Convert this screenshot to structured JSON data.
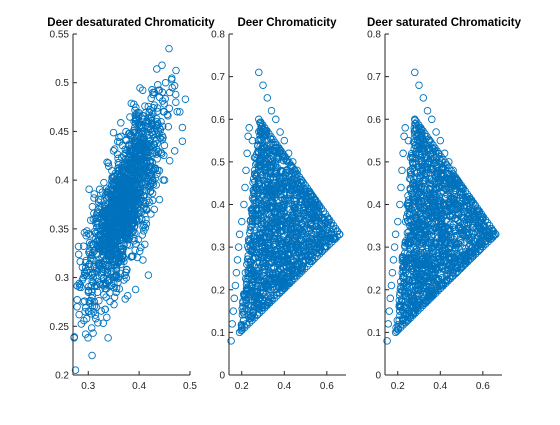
{
  "figure": {
    "marker_color": "#0072BD",
    "axis_color": "#262626",
    "background": "#ffffff"
  },
  "chart_data": [
    {
      "type": "scatter",
      "title": "Deer desaturated Chromaticity",
      "xlabel": "",
      "ylabel": "",
      "xlim": [
        0.27,
        0.5
      ],
      "ylim": [
        0.2,
        0.55
      ],
      "xticks": [
        0.3,
        0.4,
        0.5
      ],
      "yticks": [
        0.2,
        0.25,
        0.3,
        0.35,
        0.4,
        0.45,
        0.5,
        0.55
      ],
      "xtick_labels": [
        "0.3",
        "0.4",
        "0.5"
      ],
      "ytick_labels": [
        "0.2",
        "0.25",
        "0.3",
        "0.35",
        "0.4",
        "0.45",
        "0.5",
        "0.55"
      ],
      "marker": "circle",
      "grid": false,
      "points": [
        [
          0.275,
          0.205
        ],
        [
          0.278,
          0.27
        ],
        [
          0.282,
          0.262
        ],
        [
          0.286,
          0.29
        ],
        [
          0.29,
          0.275
        ],
        [
          0.295,
          0.31
        ],
        [
          0.3,
          0.285
        ],
        [
          0.305,
          0.32
        ],
        [
          0.31,
          0.3
        ],
        [
          0.315,
          0.34
        ],
        [
          0.32,
          0.315
        ],
        [
          0.325,
          0.35
        ],
        [
          0.33,
          0.33
        ],
        [
          0.335,
          0.365
        ],
        [
          0.34,
          0.345
        ],
        [
          0.345,
          0.38
        ],
        [
          0.35,
          0.36
        ],
        [
          0.355,
          0.39
        ],
        [
          0.36,
          0.37
        ],
        [
          0.365,
          0.405
        ],
        [
          0.37,
          0.385
        ],
        [
          0.375,
          0.415
        ],
        [
          0.38,
          0.395
        ],
        [
          0.385,
          0.43
        ],
        [
          0.39,
          0.405
        ],
        [
          0.395,
          0.44
        ],
        [
          0.4,
          0.415
        ],
        [
          0.405,
          0.45
        ],
        [
          0.41,
          0.425
        ],
        [
          0.415,
          0.46
        ],
        [
          0.42,
          0.44
        ],
        [
          0.425,
          0.465
        ],
        [
          0.43,
          0.45
        ],
        [
          0.44,
          0.485
        ],
        [
          0.445,
          0.518
        ],
        [
          0.452,
          0.5
        ],
        [
          0.46,
          0.49
        ],
        [
          0.465,
          0.495
        ],
        [
          0.472,
          0.48
        ],
        [
          0.48,
          0.47
        ],
        [
          0.485,
          0.44
        ],
        [
          0.47,
          0.43
        ],
        [
          0.46,
          0.42
        ],
        [
          0.45,
          0.4
        ],
        [
          0.44,
          0.38
        ],
        [
          0.3,
          0.345
        ],
        [
          0.31,
          0.36
        ],
        [
          0.32,
          0.37
        ],
        [
          0.29,
          0.3
        ],
        [
          0.335,
          0.28
        ],
        [
          0.35,
          0.3
        ],
        [
          0.37,
          0.32
        ],
        [
          0.39,
          0.34
        ],
        [
          0.405,
          0.36
        ],
        [
          0.33,
          0.3
        ],
        [
          0.36,
          0.41
        ],
        [
          0.38,
          0.43
        ],
        [
          0.4,
          0.455
        ],
        [
          0.42,
          0.47
        ],
        [
          0.43,
          0.49
        ]
      ],
      "density": {
        "center": [
          0.37,
          0.375
        ],
        "spread_major": 0.105,
        "spread_minor": 0.02,
        "angle_deg": 56
      }
    },
    {
      "type": "scatter",
      "title": "Deer Chromaticity",
      "xlabel": "",
      "ylabel": "",
      "xlim": [
        0.14,
        0.69
      ],
      "ylim": [
        0,
        0.8
      ],
      "xticks": [
        0.2,
        0.4,
        0.6
      ],
      "yticks": [
        0,
        0.1,
        0.2,
        0.3,
        0.4,
        0.5,
        0.6,
        0.7,
        0.8
      ],
      "xtick_labels": [
        "0.2",
        "0.4",
        "0.6"
      ],
      "ytick_labels": [
        "0",
        "0.1",
        "0.2",
        "0.3",
        "0.4",
        "0.5",
        "0.6",
        "0.7",
        "0.8"
      ],
      "marker": "circle",
      "grid": false,
      "points": [
        [
          0.15,
          0.08
        ],
        [
          0.155,
          0.12
        ],
        [
          0.16,
          0.15
        ],
        [
          0.165,
          0.18
        ],
        [
          0.17,
          0.21
        ],
        [
          0.175,
          0.24
        ],
        [
          0.18,
          0.27
        ],
        [
          0.185,
          0.3
        ],
        [
          0.19,
          0.33
        ],
        [
          0.2,
          0.36
        ],
        [
          0.21,
          0.4
        ],
        [
          0.215,
          0.44
        ],
        [
          0.22,
          0.48
        ],
        [
          0.225,
          0.52
        ],
        [
          0.23,
          0.56
        ],
        [
          0.235,
          0.58
        ],
        [
          0.25,
          0.55
        ],
        [
          0.26,
          0.51
        ],
        [
          0.28,
          0.71
        ],
        [
          0.3,
          0.68
        ],
        [
          0.32,
          0.65
        ],
        [
          0.34,
          0.62
        ],
        [
          0.36,
          0.6
        ],
        [
          0.38,
          0.57
        ],
        [
          0.4,
          0.55
        ],
        [
          0.42,
          0.52
        ],
        [
          0.44,
          0.5
        ],
        [
          0.46,
          0.48
        ],
        [
          0.48,
          0.45
        ],
        [
          0.5,
          0.43
        ],
        [
          0.52,
          0.41
        ],
        [
          0.54,
          0.39
        ],
        [
          0.56,
          0.37
        ],
        [
          0.58,
          0.35
        ],
        [
          0.6,
          0.34
        ],
        [
          0.62,
          0.33
        ],
        [
          0.64,
          0.32
        ],
        [
          0.66,
          0.33
        ],
        [
          0.2,
          0.11
        ],
        [
          0.22,
          0.12
        ],
        [
          0.24,
          0.14
        ],
        [
          0.26,
          0.16
        ],
        [
          0.28,
          0.18
        ],
        [
          0.3,
          0.19
        ],
        [
          0.32,
          0.21
        ],
        [
          0.34,
          0.22
        ],
        [
          0.36,
          0.24
        ],
        [
          0.38,
          0.25
        ],
        [
          0.4,
          0.27
        ],
        [
          0.42,
          0.28
        ],
        [
          0.44,
          0.27
        ],
        [
          0.46,
          0.26
        ],
        [
          0.48,
          0.25
        ],
        [
          0.5,
          0.27
        ],
        [
          0.52,
          0.29
        ],
        [
          0.55,
          0.3
        ],
        [
          0.58,
          0.31
        ],
        [
          0.3,
          0.4
        ],
        [
          0.35,
          0.45
        ],
        [
          0.4,
          0.4
        ]
      ],
      "density": {
        "edges": "triangle",
        "vertices": [
          [
            0.19,
            0.1
          ],
          [
            0.28,
            0.6
          ],
          [
            0.66,
            0.33
          ]
        ]
      }
    },
    {
      "type": "scatter",
      "title": "Deer saturated Chromaticity",
      "xlabel": "",
      "ylabel": "",
      "xlim": [
        0.14,
        0.69
      ],
      "ylim": [
        0,
        0.8
      ],
      "xticks": [
        0.2,
        0.4,
        0.6
      ],
      "yticks": [
        0,
        0.1,
        0.2,
        0.3,
        0.4,
        0.5,
        0.6,
        0.7,
        0.8
      ],
      "xtick_labels": [
        "0.2",
        "0.4",
        "0.6"
      ],
      "ytick_labels": [
        "0",
        "0.1",
        "0.2",
        "0.3",
        "0.4",
        "0.5",
        "0.6",
        "0.7",
        "0.8"
      ],
      "marker": "circle",
      "grid": false,
      "points": [
        [
          0.15,
          0.08
        ],
        [
          0.155,
          0.12
        ],
        [
          0.16,
          0.15
        ],
        [
          0.165,
          0.18
        ],
        [
          0.17,
          0.21
        ],
        [
          0.175,
          0.24
        ],
        [
          0.18,
          0.27
        ],
        [
          0.185,
          0.3
        ],
        [
          0.19,
          0.33
        ],
        [
          0.2,
          0.36
        ],
        [
          0.21,
          0.4
        ],
        [
          0.215,
          0.44
        ],
        [
          0.22,
          0.48
        ],
        [
          0.225,
          0.52
        ],
        [
          0.23,
          0.56
        ],
        [
          0.235,
          0.58
        ],
        [
          0.25,
          0.55
        ],
        [
          0.26,
          0.51
        ],
        [
          0.28,
          0.71
        ],
        [
          0.3,
          0.68
        ],
        [
          0.32,
          0.65
        ],
        [
          0.34,
          0.62
        ],
        [
          0.36,
          0.6
        ],
        [
          0.38,
          0.57
        ],
        [
          0.4,
          0.55
        ],
        [
          0.42,
          0.52
        ],
        [
          0.44,
          0.5
        ],
        [
          0.46,
          0.48
        ],
        [
          0.48,
          0.45
        ],
        [
          0.5,
          0.43
        ],
        [
          0.52,
          0.41
        ],
        [
          0.54,
          0.39
        ],
        [
          0.56,
          0.37
        ],
        [
          0.58,
          0.35
        ],
        [
          0.6,
          0.34
        ],
        [
          0.62,
          0.33
        ],
        [
          0.64,
          0.32
        ],
        [
          0.66,
          0.33
        ],
        [
          0.2,
          0.11
        ],
        [
          0.22,
          0.12
        ],
        [
          0.24,
          0.14
        ],
        [
          0.26,
          0.16
        ],
        [
          0.28,
          0.18
        ],
        [
          0.3,
          0.19
        ],
        [
          0.32,
          0.21
        ],
        [
          0.34,
          0.22
        ],
        [
          0.36,
          0.24
        ],
        [
          0.38,
          0.25
        ],
        [
          0.4,
          0.27
        ],
        [
          0.42,
          0.28
        ],
        [
          0.44,
          0.27
        ],
        [
          0.46,
          0.26
        ],
        [
          0.48,
          0.25
        ],
        [
          0.5,
          0.27
        ],
        [
          0.52,
          0.29
        ],
        [
          0.55,
          0.3
        ],
        [
          0.58,
          0.31
        ],
        [
          0.3,
          0.4
        ],
        [
          0.35,
          0.45
        ],
        [
          0.4,
          0.4
        ]
      ],
      "density": {
        "edges": "triangle",
        "vertices": [
          [
            0.19,
            0.1
          ],
          [
            0.28,
            0.6
          ],
          [
            0.66,
            0.33
          ]
        ]
      }
    }
  ]
}
